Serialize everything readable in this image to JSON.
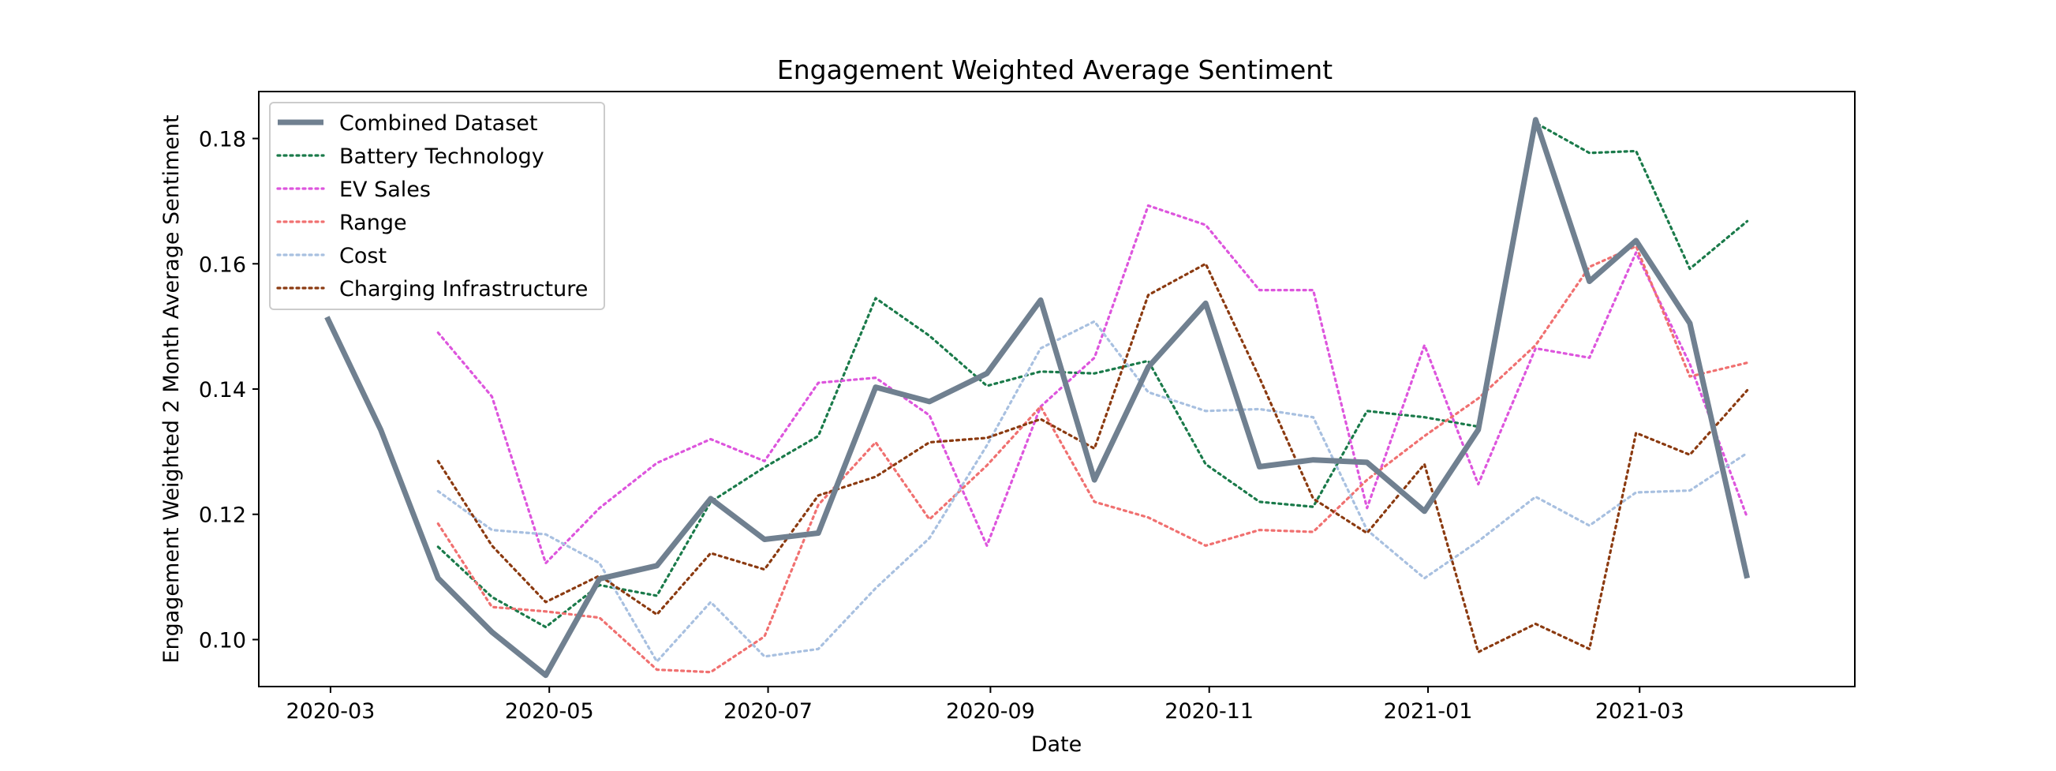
{
  "chart_data": {
    "type": "line",
    "title": "Engagement Weighted Average Sentiment",
    "xlabel": "Date",
    "ylabel": "Engagement Weighted 2 Month Average Sentiment",
    "x_tick_labels": [
      "2020-03",
      "2020-05",
      "2020-07",
      "2020-09",
      "2020-11",
      "2021-01",
      "2021-03"
    ],
    "y_tick_labels": [
      "0.10",
      "0.12",
      "0.14",
      "0.16",
      "0.18"
    ],
    "y_ticks": [
      0.1,
      0.12,
      0.14,
      0.16,
      0.18
    ],
    "ylim": [
      0.0925,
      0.1875
    ],
    "xlim": [
      "2020-02-10",
      "2021-04-30"
    ],
    "grid": false,
    "legend_position": "top-left",
    "x": [
      "2020-02-29",
      "2020-03-15",
      "2020-03-31",
      "2020-04-15",
      "2020-04-30",
      "2020-05-15",
      "2020-05-31",
      "2020-06-15",
      "2020-06-30",
      "2020-07-15",
      "2020-07-31",
      "2020-08-15",
      "2020-08-31",
      "2020-09-15",
      "2020-09-30",
      "2020-10-15",
      "2020-10-31",
      "2020-11-15",
      "2020-11-30",
      "2020-12-15",
      "2020-12-31",
      "2021-01-15",
      "2021-01-31",
      "2021-02-15",
      "2021-02-28",
      "2021-03-15",
      "2021-03-31"
    ],
    "series": [
      {
        "name": "Combined Dataset",
        "color": "#708090",
        "style": "solid",
        "values": [
          0.1515,
          0.1335,
          0.1098,
          0.1012,
          0.0943,
          0.1097,
          0.1118,
          0.1225,
          0.116,
          0.117,
          0.1403,
          0.138,
          0.1425,
          0.1542,
          0.1255,
          0.1435,
          0.1537,
          0.1276,
          0.1287,
          0.1283,
          0.1205,
          0.1335,
          0.183,
          0.1572,
          0.1637,
          0.1505,
          0.1098
        ]
      },
      {
        "name": "Battery Technology",
        "color": "#1a7a4a",
        "style": "dotted",
        "values": [
          null,
          null,
          0.1148,
          0.1068,
          0.102,
          0.1087,
          0.107,
          0.122,
          0.1275,
          0.1325,
          0.1545,
          0.1485,
          0.1405,
          0.1428,
          0.1425,
          0.1445,
          0.128,
          0.122,
          0.1212,
          0.1365,
          0.1355,
          0.134,
          0.1825,
          0.1777,
          0.178,
          0.1592,
          0.1668
        ]
      },
      {
        "name": "EV Sales",
        "color": "#dd55dd",
        "style": "dotted",
        "values": [
          null,
          null,
          0.149,
          0.1388,
          0.1122,
          0.121,
          0.1282,
          0.132,
          0.1285,
          0.141,
          0.1418,
          0.1358,
          0.115,
          0.1372,
          0.145,
          0.1693,
          0.1662,
          0.1558,
          0.1558,
          0.121,
          0.147,
          0.1248,
          0.1465,
          0.145,
          0.1618,
          0.144,
          0.1195
        ]
      },
      {
        "name": "Range",
        "color": "#f07070",
        "style": "dotted",
        "values": [
          null,
          null,
          0.1185,
          0.1052,
          0.1045,
          0.1035,
          0.0952,
          0.0948,
          0.1005,
          0.1215,
          0.1315,
          0.1192,
          0.1278,
          0.1372,
          0.122,
          0.1195,
          0.115,
          0.1175,
          0.1172,
          0.1255,
          0.1325,
          0.1385,
          0.147,
          0.1595,
          0.1628,
          0.142,
          0.1442
        ]
      },
      {
        "name": "Cost",
        "color": "#a8c0e0",
        "style": "dotted",
        "values": [
          null,
          null,
          0.1237,
          0.1175,
          0.1168,
          0.1122,
          0.0965,
          0.106,
          0.0973,
          0.0985,
          0.1082,
          0.1162,
          0.131,
          0.1465,
          0.1508,
          0.1395,
          0.1365,
          0.1368,
          0.1355,
          0.1175,
          0.1098,
          0.1157,
          0.1228,
          0.1182,
          0.1235,
          0.1238,
          0.1298
        ]
      },
      {
        "name": "Charging Infrastructure",
        "color": "#8b3a10",
        "style": "dotted",
        "values": [
          null,
          null,
          0.1285,
          0.115,
          0.106,
          0.1102,
          0.104,
          0.1138,
          0.1112,
          0.123,
          0.126,
          0.1315,
          0.1322,
          0.1352,
          0.1305,
          0.155,
          0.16,
          0.1418,
          0.1225,
          0.117,
          0.128,
          0.098,
          0.1025,
          0.0985,
          0.133,
          0.1295,
          0.1398
        ]
      }
    ]
  }
}
